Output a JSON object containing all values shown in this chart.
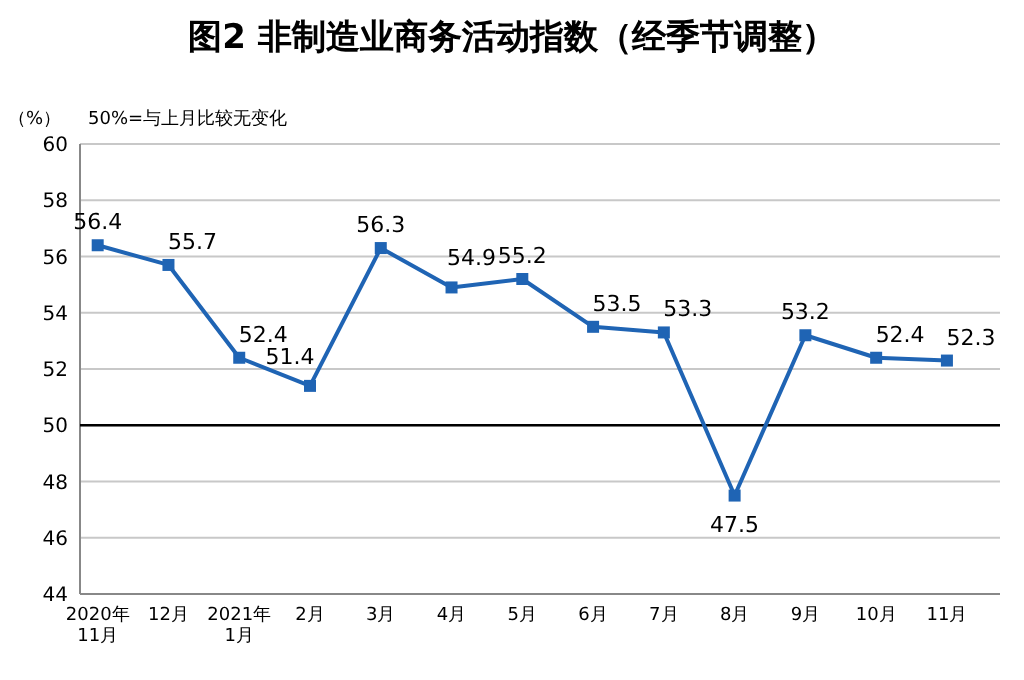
{
  "chart_data": {
    "type": "line",
    "title": "图2 非制造业商务活动指数（经季节调整）",
    "ylabel": "（%）",
    "annotations": [
      "50%=与上月比较无变化"
    ],
    "categories": [
      "2020年\n11月",
      "12月",
      "2021年\n1月",
      "2月",
      "3月",
      "4月",
      "5月",
      "6月",
      "7月",
      "8月",
      "9月",
      "10月",
      "11月"
    ],
    "series": [
      {
        "color": "#1f64b4",
        "values": [
          56.4,
          55.7,
          52.4,
          51.4,
          56.3,
          54.9,
          55.2,
          53.5,
          53.3,
          47.5,
          53.2,
          52.4,
          52.3
        ]
      }
    ],
    "ylim": [
      44,
      60
    ],
    "yticks": [
      44,
      46,
      48,
      50,
      52,
      54,
      56,
      58,
      60
    ],
    "grid": "y",
    "marker": "square",
    "line_style": "solid",
    "data_labels": true,
    "ref_lines": [
      {
        "axis": "y",
        "value": 50,
        "color": "#000000"
      }
    ]
  }
}
